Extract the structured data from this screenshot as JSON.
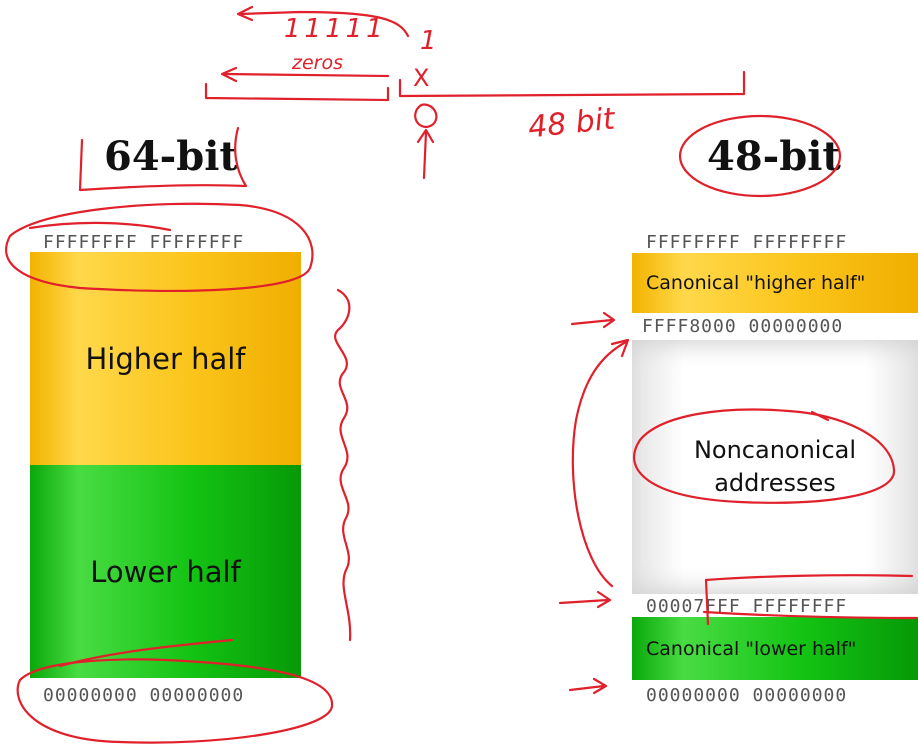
{
  "left": {
    "title": "64-bit",
    "top_address": "FFFFFFFF FFFFFFFF",
    "higher_label": "Higher half",
    "lower_label": "Lower half",
    "bottom_address": "00000000 00000000"
  },
  "right": {
    "title": "48-bit",
    "top_address": "FFFFFFFF FFFFFFFF",
    "higher_label": "Canonical \"higher half\"",
    "higher_start_address": "FFFF8000 00000000",
    "noncanonical_label_line1": "Noncanonical",
    "noncanonical_label_line2": "addresses",
    "lower_end_address": "00007FFF FFFFFFFF",
    "lower_label": "Canonical \"lower half\"",
    "bottom_address": "00000000 00000000"
  },
  "annotations": {
    "ones": "11111",
    "one": "1",
    "zeros": "zeros",
    "x_mark": "X",
    "bit_count": "48 bit"
  },
  "colors": {
    "higher_half": "#f8c010",
    "lower_half": "#12c212",
    "ink": "#e0202a"
  }
}
